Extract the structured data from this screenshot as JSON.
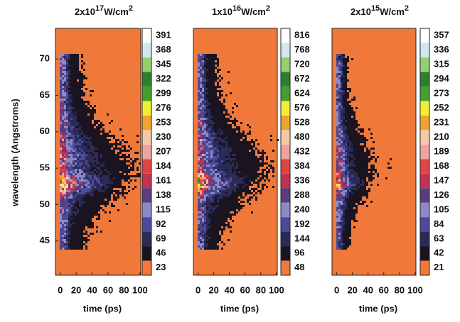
{
  "chart_data": [
    {
      "type": "heatmap",
      "title": {
        "base": "2x10",
        "exponent": "17",
        "unit": "W/cm",
        "unit_exponent": "2"
      },
      "xlabel": "time (ps)",
      "ylabel": "wavelength (Angstroms)",
      "xlim": [
        -6,
        101
      ],
      "xticks": [
        0,
        20,
        40,
        60,
        80,
        100
      ],
      "ylim": [
        40.3,
        74.2
      ],
      "yticks": [
        45,
        50,
        55,
        60,
        65,
        70
      ],
      "clim": [
        11.5,
        402.5
      ],
      "cticks": [
        23,
        46,
        69,
        92,
        115,
        138,
        161,
        184,
        207,
        230,
        253,
        276,
        299,
        322,
        345,
        368,
        391
      ],
      "colors": [
        "#f0793a",
        "#1a1420",
        "#2b2b58",
        "#4b4b9c",
        "#8d89c8",
        "#5c3c7c",
        "#c23352",
        "#e04444",
        "#f0a2a0",
        "#f5c9a8",
        "#f0a232",
        "#f2ee34",
        "#42a032",
        "#2f7f2f",
        "#94d070",
        "#d2e8f0",
        "#ffffff"
      ]
    },
    {
      "type": "heatmap",
      "title": {
        "base": "1x10",
        "exponent": "16",
        "unit": "W/cm",
        "unit_exponent": "2"
      },
      "xlabel": "time (ps)",
      "xlim": [
        -6,
        101
      ],
      "xticks": [
        0,
        20,
        40,
        60,
        80,
        100
      ],
      "ylim": [
        40.3,
        74.2
      ],
      "clim": [
        24,
        840
      ],
      "cticks": [
        48,
        96,
        144,
        192,
        240,
        288,
        336,
        384,
        432,
        480,
        528,
        576,
        624,
        672,
        720,
        768,
        816
      ],
      "colors": [
        "#f0793a",
        "#1a1420",
        "#2b2b58",
        "#4b4b9c",
        "#8d89c8",
        "#5c3c7c",
        "#c23352",
        "#e04444",
        "#f0a2a0",
        "#f5c9a8",
        "#f0a232",
        "#f2ee34",
        "#42a032",
        "#2f7f2f",
        "#94d070",
        "#d2e8f0",
        "#ffffff"
      ]
    },
    {
      "type": "heatmap",
      "title": {
        "base": "2x10",
        "exponent": "15",
        "unit": "W/cm",
        "unit_exponent": "2"
      },
      "xlabel": "time (ps)",
      "xlim": [
        -6,
        101
      ],
      "xticks": [
        0,
        20,
        40,
        60,
        80,
        100
      ],
      "ylim": [
        40.3,
        74.2
      ],
      "clim": [
        10.5,
        367.5
      ],
      "cticks": [
        21,
        42,
        63,
        84,
        105,
        126,
        147,
        168,
        189,
        210,
        231,
        252,
        273,
        294,
        315,
        336,
        357
      ],
      "colors": [
        "#f0793a",
        "#1a1420",
        "#2b2b58",
        "#4b4b9c",
        "#8d89c8",
        "#5c3c7c",
        "#c23352",
        "#e04444",
        "#f0a2a0",
        "#f5c9a8",
        "#f0a232",
        "#f2ee34",
        "#42a032",
        "#2f7f2f",
        "#94d070",
        "#d2e8f0",
        "#ffffff"
      ]
    }
  ]
}
